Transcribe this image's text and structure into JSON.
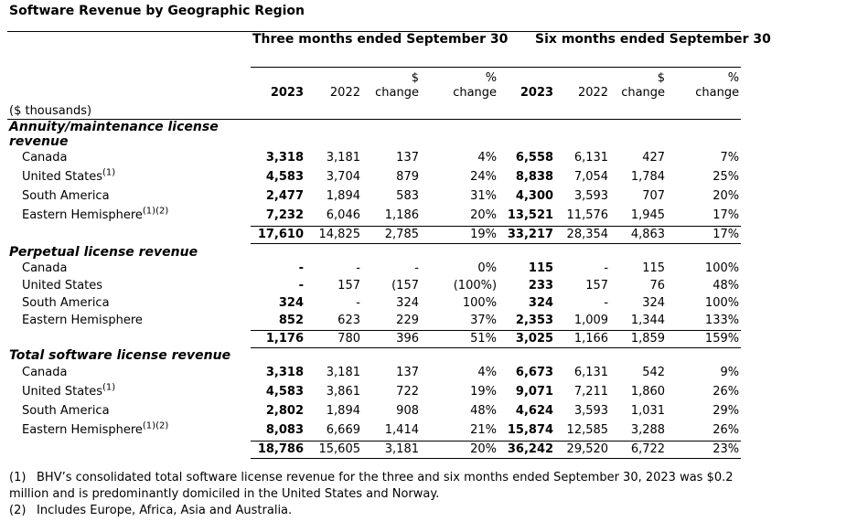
{
  "title": "Software Revenue by Geographic Region",
  "header": {
    "period1": "Three months ended September 30",
    "period2": "Six months ended September 30",
    "unit_label": "($ thousands)",
    "columns": [
      "2023",
      "2022",
      "$ change",
      "% change",
      "2023",
      "2022",
      "$ change",
      "% change"
    ],
    "dollar_sign": "$",
    "change_word": "change",
    "percent_sign": "%"
  },
  "sections": [
    {
      "label": "Annuity/maintenance license revenue",
      "rows": [
        {
          "name": "Canada",
          "sup": "",
          "values": [
            "3,318",
            "3,181",
            "137",
            "4%",
            "6,558",
            "6,131",
            "427",
            "7%"
          ]
        },
        {
          "name": "United States",
          "sup": "(1)",
          "values": [
            "4,583",
            "3,704",
            "879",
            "24%",
            "8,838",
            "7,054",
            "1,784",
            "25%"
          ]
        },
        {
          "name": "South America",
          "sup": "",
          "values": [
            "2,477",
            "1,894",
            "583",
            "31%",
            "4,300",
            "3,593",
            "707",
            "20%"
          ]
        },
        {
          "name": "Eastern Hemisphere",
          "sup": "(1)(2)",
          "values": [
            "7,232",
            "6,046",
            "1,186",
            "20%",
            "13,521",
            "11,576",
            "1,945",
            "17%"
          ]
        }
      ],
      "total": [
        "17,610",
        "14,825",
        "2,785",
        "19%",
        "33,217",
        "28,354",
        "4,863",
        "17%"
      ]
    },
    {
      "label": "Perpetual license revenue",
      "rows": [
        {
          "name": "Canada",
          "sup": "",
          "values": [
            "-",
            "-",
            "-",
            "0%",
            "115",
            "-",
            "115",
            "100%"
          ]
        },
        {
          "name": "United States",
          "sup": "",
          "values": [
            "-",
            "157",
            "(157",
            "(100%)",
            "233",
            "157",
            "76",
            "48%"
          ]
        },
        {
          "name": "South America",
          "sup": "",
          "values": [
            "324",
            "-",
            "324",
            "100%",
            "324",
            "-",
            "324",
            "100%"
          ]
        },
        {
          "name": "Eastern Hemisphere",
          "sup": "",
          "values": [
            "852",
            "623",
            "229",
            "37%",
            "2,353",
            "1,009",
            "1,344",
            "133%"
          ]
        }
      ],
      "total": [
        "1,176",
        "780",
        "396",
        "51%",
        "3,025",
        "1,166",
        "1,859",
        "159%"
      ]
    },
    {
      "label": "Total software license revenue",
      "rows": [
        {
          "name": "Canada",
          "sup": "",
          "values": [
            "3,318",
            "3,181",
            "137",
            "4%",
            "6,673",
            "6,131",
            "542",
            "9%"
          ]
        },
        {
          "name": "United States",
          "sup": "(1)",
          "values": [
            "4,583",
            "3,861",
            "722",
            "19%",
            "9,071",
            "7,211",
            "1,860",
            "26%"
          ]
        },
        {
          "name": "South America",
          "sup": "",
          "values": [
            "2,802",
            "1,894",
            "908",
            "48%",
            "4,624",
            "3,593",
            "1,031",
            "29%"
          ]
        },
        {
          "name": "Eastern Hemisphere",
          "sup": "(1)(2)",
          "values": [
            "8,083",
            "6,669",
            "1,414",
            "21%",
            "15,874",
            "12,585",
            "3,288",
            "26%"
          ]
        }
      ],
      "total": [
        "18,786",
        "15,605",
        "3,181",
        "20%",
        "36,242",
        "29,520",
        "6,722",
        "23%"
      ]
    }
  ],
  "footnotes": [
    {
      "mark": "(1)",
      "text": "BHV’s consolidated total software license revenue for the three and six months ended September 30, 2023 was $0.2 million and is predominantly domiciled in the United States and Norway."
    },
    {
      "mark": "(2)",
      "text": "Includes Europe, Africa, Asia and Australia."
    }
  ]
}
